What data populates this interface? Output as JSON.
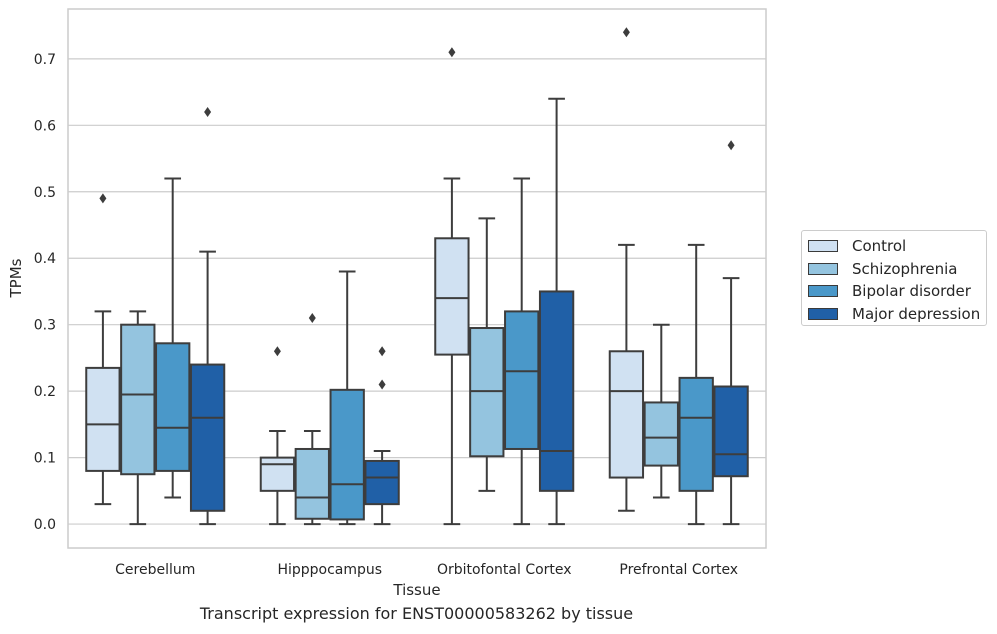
{
  "chart_data": {
    "type": "box",
    "caption": "Transcript expression for ENST00000583262 by tissue",
    "xlabel": "Tissue",
    "ylabel": "TPMs",
    "ylim": [
      -0.036,
      0.775
    ],
    "yticks": [
      "0.0",
      "0.1",
      "0.2",
      "0.3",
      "0.4",
      "0.5",
      "0.6",
      "0.7"
    ],
    "grid": true,
    "legend_position": "right",
    "categories": [
      "Cerebellum",
      "Hipppocampus",
      "Orbitofontal Cortex",
      "Prefrontal Cortex"
    ],
    "series": [
      {
        "name": "Control",
        "color": "#d0e1f2",
        "boxes": [
          {
            "whislo": 0.03,
            "q1": 0.08,
            "med": 0.15,
            "q3": 0.235,
            "whishi": 0.32,
            "fliers": [
              0.49
            ]
          },
          {
            "whislo": 0.0,
            "q1": 0.05,
            "med": 0.09,
            "q3": 0.1,
            "whishi": 0.14,
            "fliers": [
              0.26
            ]
          },
          {
            "whislo": 0.0,
            "q1": 0.255,
            "med": 0.34,
            "q3": 0.43,
            "whishi": 0.52,
            "fliers": [
              0.71
            ]
          },
          {
            "whislo": 0.02,
            "q1": 0.07,
            "med": 0.2,
            "q3": 0.26,
            "whishi": 0.42,
            "fliers": [
              0.74
            ]
          }
        ]
      },
      {
        "name": "Schizophrenia",
        "color": "#94c4df",
        "boxes": [
          {
            "whislo": 0.0,
            "q1": 0.075,
            "med": 0.195,
            "q3": 0.3,
            "whishi": 0.32,
            "fliers": []
          },
          {
            "whislo": 0.0,
            "q1": 0.008,
            "med": 0.04,
            "q3": 0.113,
            "whishi": 0.14,
            "fliers": [
              0.31
            ]
          },
          {
            "whislo": 0.05,
            "q1": 0.102,
            "med": 0.2,
            "q3": 0.295,
            "whishi": 0.46,
            "fliers": []
          },
          {
            "whislo": 0.04,
            "q1": 0.088,
            "med": 0.13,
            "q3": 0.183,
            "whishi": 0.3,
            "fliers": []
          }
        ]
      },
      {
        "name": "Bipolar disorder",
        "color": "#4a98c9",
        "boxes": [
          {
            "whislo": 0.04,
            "q1": 0.08,
            "med": 0.145,
            "q3": 0.272,
            "whishi": 0.52,
            "fliers": []
          },
          {
            "whislo": 0.0,
            "q1": 0.007,
            "med": 0.06,
            "q3": 0.202,
            "whishi": 0.38,
            "fliers": []
          },
          {
            "whislo": 0.0,
            "q1": 0.113,
            "med": 0.23,
            "q3": 0.32,
            "whishi": 0.52,
            "fliers": []
          },
          {
            "whislo": 0.0,
            "q1": 0.05,
            "med": 0.16,
            "q3": 0.22,
            "whishi": 0.42,
            "fliers": []
          }
        ]
      },
      {
        "name": "Major depression",
        "color": "#2060a7",
        "boxes": [
          {
            "whislo": 0.0,
            "q1": 0.02,
            "med": 0.16,
            "q3": 0.24,
            "whishi": 0.41,
            "fliers": [
              0.62
            ]
          },
          {
            "whislo": 0.0,
            "q1": 0.03,
            "med": 0.07,
            "q3": 0.095,
            "whishi": 0.11,
            "fliers": [
              0.21,
              0.26
            ]
          },
          {
            "whislo": 0.0,
            "q1": 0.05,
            "med": 0.11,
            "q3": 0.35,
            "whishi": 0.64,
            "fliers": []
          },
          {
            "whislo": 0.0,
            "q1": 0.072,
            "med": 0.105,
            "q3": 0.207,
            "whishi": 0.37,
            "fliers": [
              0.57
            ]
          }
        ]
      }
    ]
  }
}
